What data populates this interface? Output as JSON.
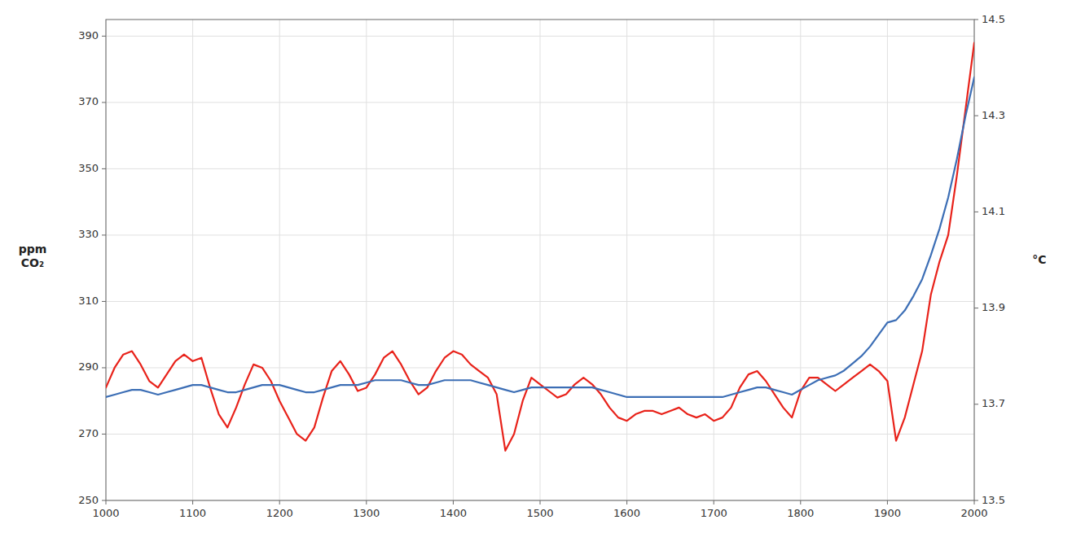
{
  "chart_data": {
    "type": "line",
    "ylabel": "ppm\nCO₂",
    "y2label": "°C",
    "xlim": [
      1000,
      2000
    ],
    "xticks": [
      1000,
      1100,
      1200,
      1300,
      1400,
      1500,
      1600,
      1700,
      1800,
      1900,
      2000
    ],
    "ylim": [
      250,
      395
    ],
    "yticks": [
      250,
      270,
      290,
      310,
      330,
      350,
      370,
      390
    ],
    "y2lim": [
      13.5,
      14.5
    ],
    "y2ticks": [
      13.5,
      13.7,
      13.9,
      14.1,
      14.3,
      14.5
    ],
    "grid": true,
    "x": [
      1000,
      1010,
      1020,
      1030,
      1040,
      1050,
      1060,
      1070,
      1080,
      1090,
      1100,
      1110,
      1120,
      1130,
      1140,
      1150,
      1160,
      1170,
      1180,
      1190,
      1200,
      1210,
      1220,
      1230,
      1240,
      1250,
      1260,
      1270,
      1280,
      1290,
      1300,
      1310,
      1320,
      1330,
      1340,
      1350,
      1360,
      1370,
      1380,
      1390,
      1400,
      1410,
      1420,
      1430,
      1440,
      1450,
      1460,
      1470,
      1480,
      1490,
      1500,
      1510,
      1520,
      1530,
      1540,
      1550,
      1560,
      1570,
      1580,
      1590,
      1600,
      1610,
      1620,
      1630,
      1640,
      1650,
      1660,
      1670,
      1680,
      1690,
      1700,
      1710,
      1720,
      1730,
      1740,
      1750,
      1760,
      1770,
      1780,
      1790,
      1800,
      1810,
      1820,
      1830,
      1840,
      1850,
      1860,
      1870,
      1880,
      1890,
      1900,
      1910,
      1920,
      1930,
      1940,
      1950,
      1960,
      1970,
      1980,
      1990,
      2000
    ],
    "series": [
      {
        "color": "#e8221a",
        "axis": "y",
        "values": [
          284,
          290,
          294,
          295,
          291,
          286,
          284,
          288,
          292,
          294,
          292,
          293,
          284,
          276,
          272,
          278,
          285,
          291,
          290,
          286,
          280,
          275,
          270,
          268,
          272,
          281,
          289,
          292,
          288,
          283,
          284,
          288,
          293,
          295,
          291,
          286,
          282,
          284,
          289,
          293,
          295,
          294,
          291,
          289,
          287,
          282,
          265,
          270,
          280,
          287,
          285,
          283,
          281,
          282,
          285,
          287,
          285,
          282,
          278,
          275,
          274,
          276,
          277,
          277,
          276,
          277,
          278,
          276,
          275,
          276,
          274,
          275,
          278,
          284,
          288,
          289,
          286,
          282,
          278,
          275,
          283,
          287,
          287,
          285,
          283,
          285,
          287,
          289,
          291,
          289,
          286,
          268,
          275,
          285,
          295,
          312,
          322,
          330,
          348,
          368,
          388
        ]
      },
      {
        "color": "#3c6eb5",
        "axis": "y2",
        "values": [
          13.715,
          13.72,
          13.725,
          13.73,
          13.73,
          13.725,
          13.72,
          13.725,
          13.73,
          13.735,
          13.74,
          13.74,
          13.735,
          13.73,
          13.725,
          13.725,
          13.73,
          13.735,
          13.74,
          13.74,
          13.74,
          13.735,
          13.73,
          13.725,
          13.725,
          13.73,
          13.735,
          13.74,
          13.74,
          13.74,
          13.745,
          13.75,
          13.75,
          13.75,
          13.75,
          13.745,
          13.74,
          13.74,
          13.745,
          13.75,
          13.75,
          13.75,
          13.75,
          13.745,
          13.74,
          13.735,
          13.73,
          13.725,
          13.73,
          13.735,
          13.735,
          13.735,
          13.735,
          13.735,
          13.735,
          13.735,
          13.735,
          13.73,
          13.725,
          13.72,
          13.715,
          13.715,
          13.715,
          13.715,
          13.715,
          13.715,
          13.715,
          13.715,
          13.715,
          13.715,
          13.715,
          13.715,
          13.72,
          13.725,
          13.73,
          13.735,
          13.735,
          13.73,
          13.725,
          13.72,
          13.73,
          13.74,
          13.75,
          13.755,
          13.76,
          13.77,
          13.785,
          13.8,
          13.82,
          13.845,
          13.87,
          13.875,
          13.895,
          13.925,
          13.96,
          14.01,
          14.065,
          14.13,
          14.21,
          14.3,
          14.38
        ]
      }
    ]
  }
}
